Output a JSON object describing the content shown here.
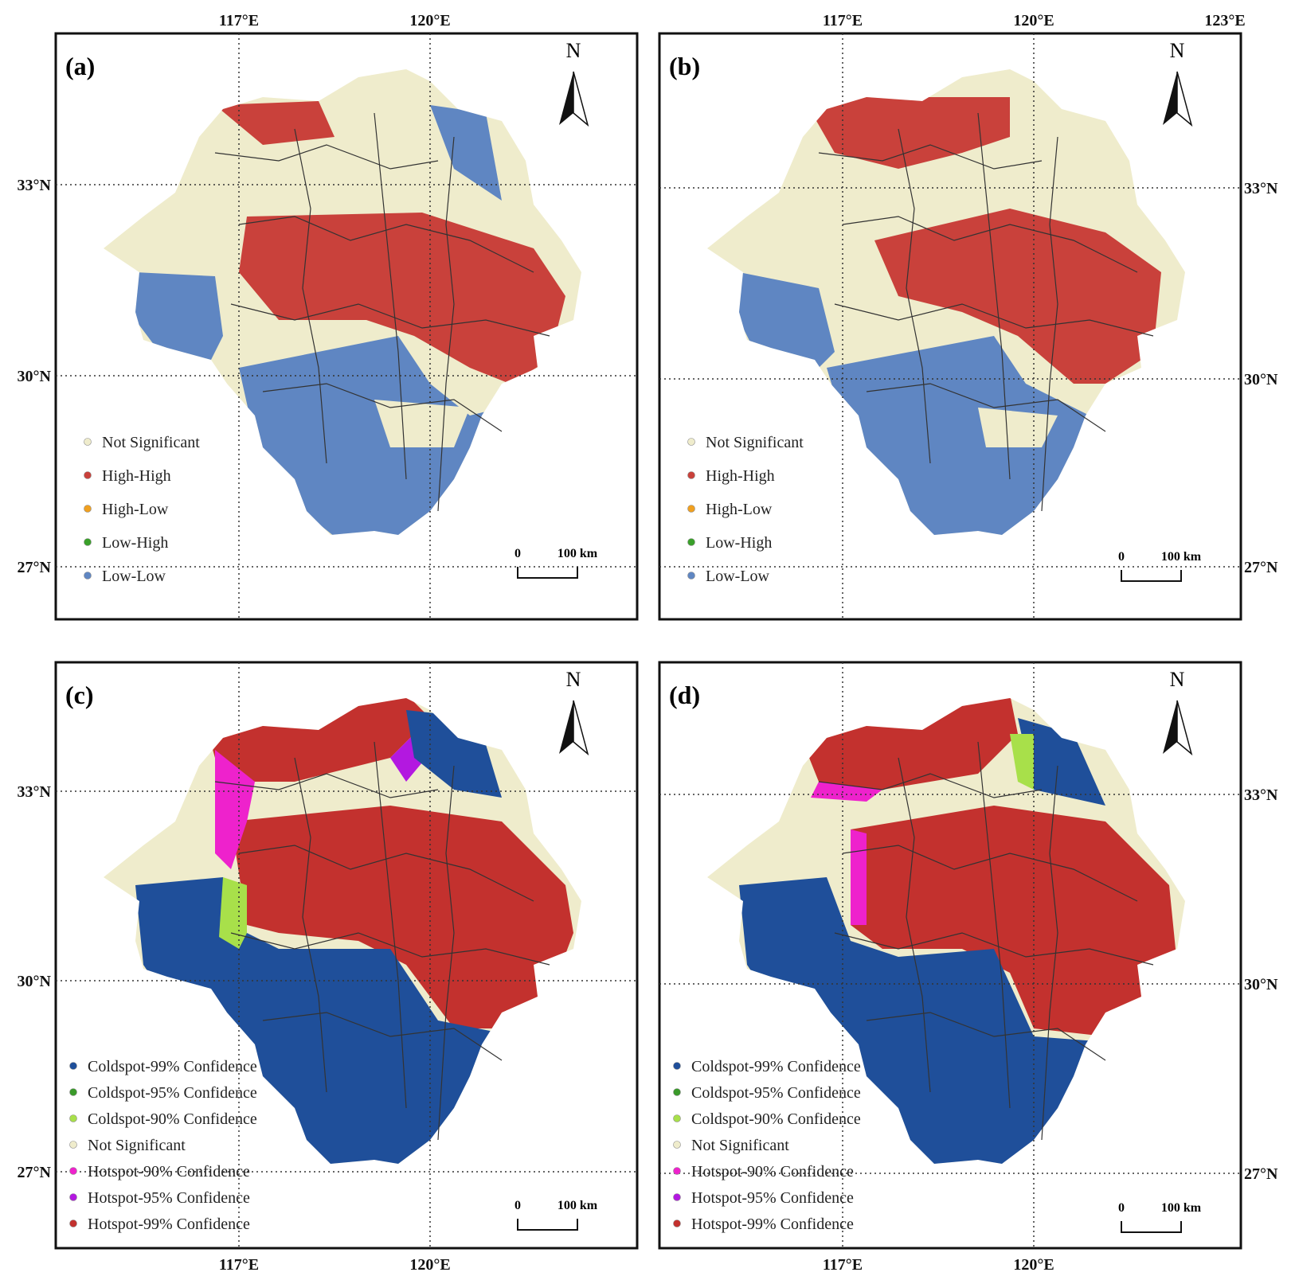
{
  "north_label": "N",
  "scale_bar": {
    "zero": "0",
    "distance": "100 km"
  },
  "axis_labels": {
    "top_lon": [
      "117°E",
      "120°E",
      "123°E"
    ],
    "bottom_lon": [
      "117°E",
      "120°E"
    ],
    "lat": [
      "33°N",
      "30°N",
      "27°N"
    ]
  },
  "colors": {
    "not_significant": "#efeccc",
    "high_high": "#c9413b",
    "high_low": "#f0a020",
    "low_high": "#3aa02a",
    "low_low": "#5f86c2",
    "cold99": "#1f4f9a",
    "cold95": "#3a9a2a",
    "cold90": "#a8e04a",
    "hot90": "#ee22cc",
    "hot95": "#b318e0",
    "hot99": "#c3312e"
  },
  "panels": [
    {
      "letter": "(a)",
      "legend": [
        {
          "label": "Not Significant",
          "color": "#efeccc"
        },
        {
          "label": "High-High",
          "color": "#c9413b"
        },
        {
          "label": "High-Low",
          "color": "#f0a020"
        },
        {
          "label": "Low-High",
          "color": "#3aa02a"
        },
        {
          "label": "Low-Low",
          "color": "#5f86c2"
        }
      ]
    },
    {
      "letter": "(b)",
      "legend": [
        {
          "label": "Not Significant",
          "color": "#efeccc"
        },
        {
          "label": "High-High",
          "color": "#c9413b"
        },
        {
          "label": "High-Low",
          "color": "#f0a020"
        },
        {
          "label": "Low-High",
          "color": "#3aa02a"
        },
        {
          "label": "Low-Low",
          "color": "#5f86c2"
        }
      ]
    },
    {
      "letter": "(c)",
      "legend": [
        {
          "label": "Coldspot-99% Confidence",
          "color": "#1f4f9a"
        },
        {
          "label": "Coldspot-95% Confidence",
          "color": "#3a9a2a"
        },
        {
          "label": "Coldspot-90% Confidence",
          "color": "#a8e04a"
        },
        {
          "label": "Not Significant",
          "color": "#efeccc"
        },
        {
          "label": "Hotspot-90% Confidence",
          "color": "#ee22cc"
        },
        {
          "label": "Hotspot-95% Confidence",
          "color": "#b318e0"
        },
        {
          "label": "Hotspot-99% Confidence",
          "color": "#c3312e"
        }
      ]
    },
    {
      "letter": "(d)",
      "legend": [
        {
          "label": "Coldspot-99% Confidence",
          "color": "#1f4f9a"
        },
        {
          "label": "Coldspot-95% Confidence",
          "color": "#3a9a2a"
        },
        {
          "label": "Coldspot-90% Confidence",
          "color": "#a8e04a"
        },
        {
          "label": "Not Significant",
          "color": "#efeccc"
        },
        {
          "label": "Hotspot-90% Confidence",
          "color": "#ee22cc"
        },
        {
          "label": "Hotspot-95% Confidence",
          "color": "#b318e0"
        },
        {
          "label": "Hotspot-99% Confidence",
          "color": "#c3312e"
        }
      ]
    }
  ]
}
